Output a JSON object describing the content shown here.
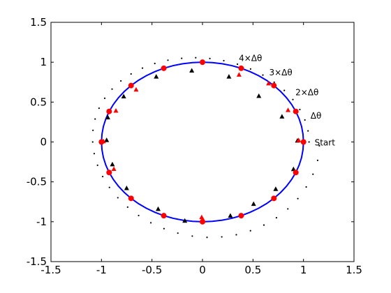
{
  "chart_data": {
    "type": "scatter",
    "title": "",
    "xlabel": "",
    "ylabel": "",
    "xlim": [
      -1.5,
      1.5
    ],
    "ylim": [
      -1.5,
      1.5
    ],
    "xticks": [
      "-1.5",
      "-1",
      "-0.5",
      "0",
      "0.5",
      "1",
      "1.5"
    ],
    "yticks": [
      "-1.5",
      "-1",
      "-0.5",
      "0",
      "0.5",
      "1",
      "1.5"
    ],
    "grid": false,
    "colors": {
      "circle": "#0000ff",
      "red": "#ff0000",
      "black": "#000000"
    },
    "series": [
      {
        "marker": "line",
        "color": "#0000ff",
        "x": [
          1,
          0.995,
          0.981,
          0.957,
          0.924,
          0.882,
          0.831,
          0.773,
          0.707,
          0.634,
          0.556,
          0.471,
          0.383,
          0.29,
          0.195,
          0.098,
          0,
          -0.098,
          -0.195,
          -0.29,
          -0.383,
          -0.471,
          -0.556,
          -0.634,
          -0.707,
          -0.773,
          -0.831,
          -0.882,
          -0.924,
          -0.957,
          -0.981,
          -0.995,
          -1,
          -0.995,
          -0.981,
          -0.957,
          -0.924,
          -0.882,
          -0.831,
          -0.773,
          -0.707,
          -0.634,
          -0.556,
          -0.471,
          -0.383,
          -0.29,
          -0.195,
          -0.098,
          0,
          0.098,
          0.195,
          0.29,
          0.383,
          0.471,
          0.556,
          0.634,
          0.707,
          0.773,
          0.831,
          0.882,
          0.924,
          0.957,
          0.981,
          0.995,
          1
        ],
        "y": [
          0,
          0.098,
          0.195,
          0.29,
          0.383,
          0.471,
          0.556,
          0.634,
          0.707,
          0.773,
          0.831,
          0.882,
          0.924,
          0.957,
          0.981,
          0.995,
          1,
          0.995,
          0.981,
          0.957,
          0.924,
          0.882,
          0.831,
          0.773,
          0.707,
          0.634,
          0.556,
          0.471,
          0.383,
          0.29,
          0.195,
          0.098,
          0,
          -0.098,
          -0.195,
          -0.29,
          -0.383,
          -0.471,
          -0.556,
          -0.634,
          -0.707,
          -0.773,
          -0.831,
          -0.882,
          -0.924,
          -0.957,
          -0.981,
          -0.995,
          -1,
          -0.995,
          -0.981,
          -0.957,
          -0.924,
          -0.882,
          -0.831,
          -0.773,
          -0.707,
          -0.634,
          -0.556,
          -0.471,
          -0.383,
          -0.29,
          -0.195,
          -0.098,
          0
        ]
      },
      {
        "marker": "dot",
        "color": "#000000",
        "x": [
          1.055,
          1.045,
          1.014,
          0.964,
          0.895,
          0.81,
          0.71,
          0.598,
          0.476,
          0.346,
          0.211,
          0.073,
          -0.067,
          -0.206,
          -0.342,
          -0.472,
          -0.594,
          -0.707,
          -0.808,
          -0.895,
          -0.968,
          -1.024,
          -1.063,
          -1.084,
          -1.087,
          -1.072,
          -1.039,
          -0.988,
          -0.921,
          -0.838,
          -0.741,
          -0.632,
          -0.511,
          -0.381,
          -0.244,
          -0.101,
          0.045,
          0.191,
          0.335,
          0.475,
          0.608,
          0.732,
          0.845,
          0.944,
          1.027,
          1.094,
          1.14,
          1.157
        ],
        "y": [
          0,
          0.139,
          0.276,
          0.407,
          0.532,
          0.646,
          0.749,
          0.839,
          0.915,
          0.975,
          1.019,
          1.046,
          1.056,
          1.049,
          1.025,
          0.984,
          0.926,
          0.853,
          0.765,
          0.663,
          0.548,
          0.423,
          0.288,
          0.146,
          0.0,
          -0.146,
          -0.292,
          -0.434,
          -0.57,
          -0.699,
          -0.817,
          -0.922,
          -1.013,
          -1.087,
          -1.143,
          -1.18,
          -1.196,
          -1.19,
          -1.163,
          -1.113,
          -1.042,
          -0.95,
          -0.839,
          -0.71,
          -0.564,
          -0.404,
          -0.231,
          -0.047
        ]
      },
      {
        "marker": "triangle",
        "color": "#000000",
        "x": [
          0.94,
          0.787,
          0.558,
          0.262,
          -0.106,
          -0.458,
          -0.78,
          -0.937,
          -0.949,
          -0.892,
          -0.751,
          -0.439,
          -0.175,
          0.276,
          0.506,
          0.725,
          0.901
        ],
        "y": [
          0.014,
          0.316,
          0.574,
          0.817,
          0.892,
          0.817,
          0.569,
          0.305,
          0.021,
          -0.283,
          -0.582,
          -0.843,
          -0.991,
          -0.927,
          -0.78,
          -0.593,
          -0.343
        ]
      },
      {
        "marker": "triangle",
        "color": "#ff0000",
        "x": [
          0.952,
          0.847,
          0.654,
          0.362,
          0.01,
          -0.657,
          -0.857,
          -0.98,
          -0.877,
          -0.008
        ],
        "y": [
          0.02,
          0.397,
          0.731,
          0.841,
          -0.987,
          0.654,
          0.389,
          0.006,
          -0.341,
          -0.946
        ]
      },
      {
        "marker": "circle",
        "color": "#ff0000",
        "x": [
          1,
          0.924,
          0.707,
          0.383,
          0,
          -0.383,
          -0.707,
          -0.924,
          -1,
          -0.924,
          -0.707,
          -0.383,
          0,
          0.383,
          0.707,
          0.924
        ],
        "y": [
          0,
          0.383,
          0.707,
          0.924,
          1,
          0.924,
          0.707,
          0.383,
          0,
          -0.383,
          -0.707,
          -0.924,
          -1,
          -0.924,
          -0.707,
          -0.383
        ]
      }
    ],
    "annotations": [
      {
        "text": "Start",
        "x": 1.11,
        "y": -0.01
      },
      {
        "text": "Δθ",
        "x": 1.07,
        "y": 0.33
      },
      {
        "text": "2×Δθ",
        "x": 0.92,
        "y": 0.62
      },
      {
        "text": "3×Δθ",
        "x": 0.66,
        "y": 0.87
      },
      {
        "text": "4×Δθ",
        "x": 0.36,
        "y": 1.05
      }
    ]
  }
}
